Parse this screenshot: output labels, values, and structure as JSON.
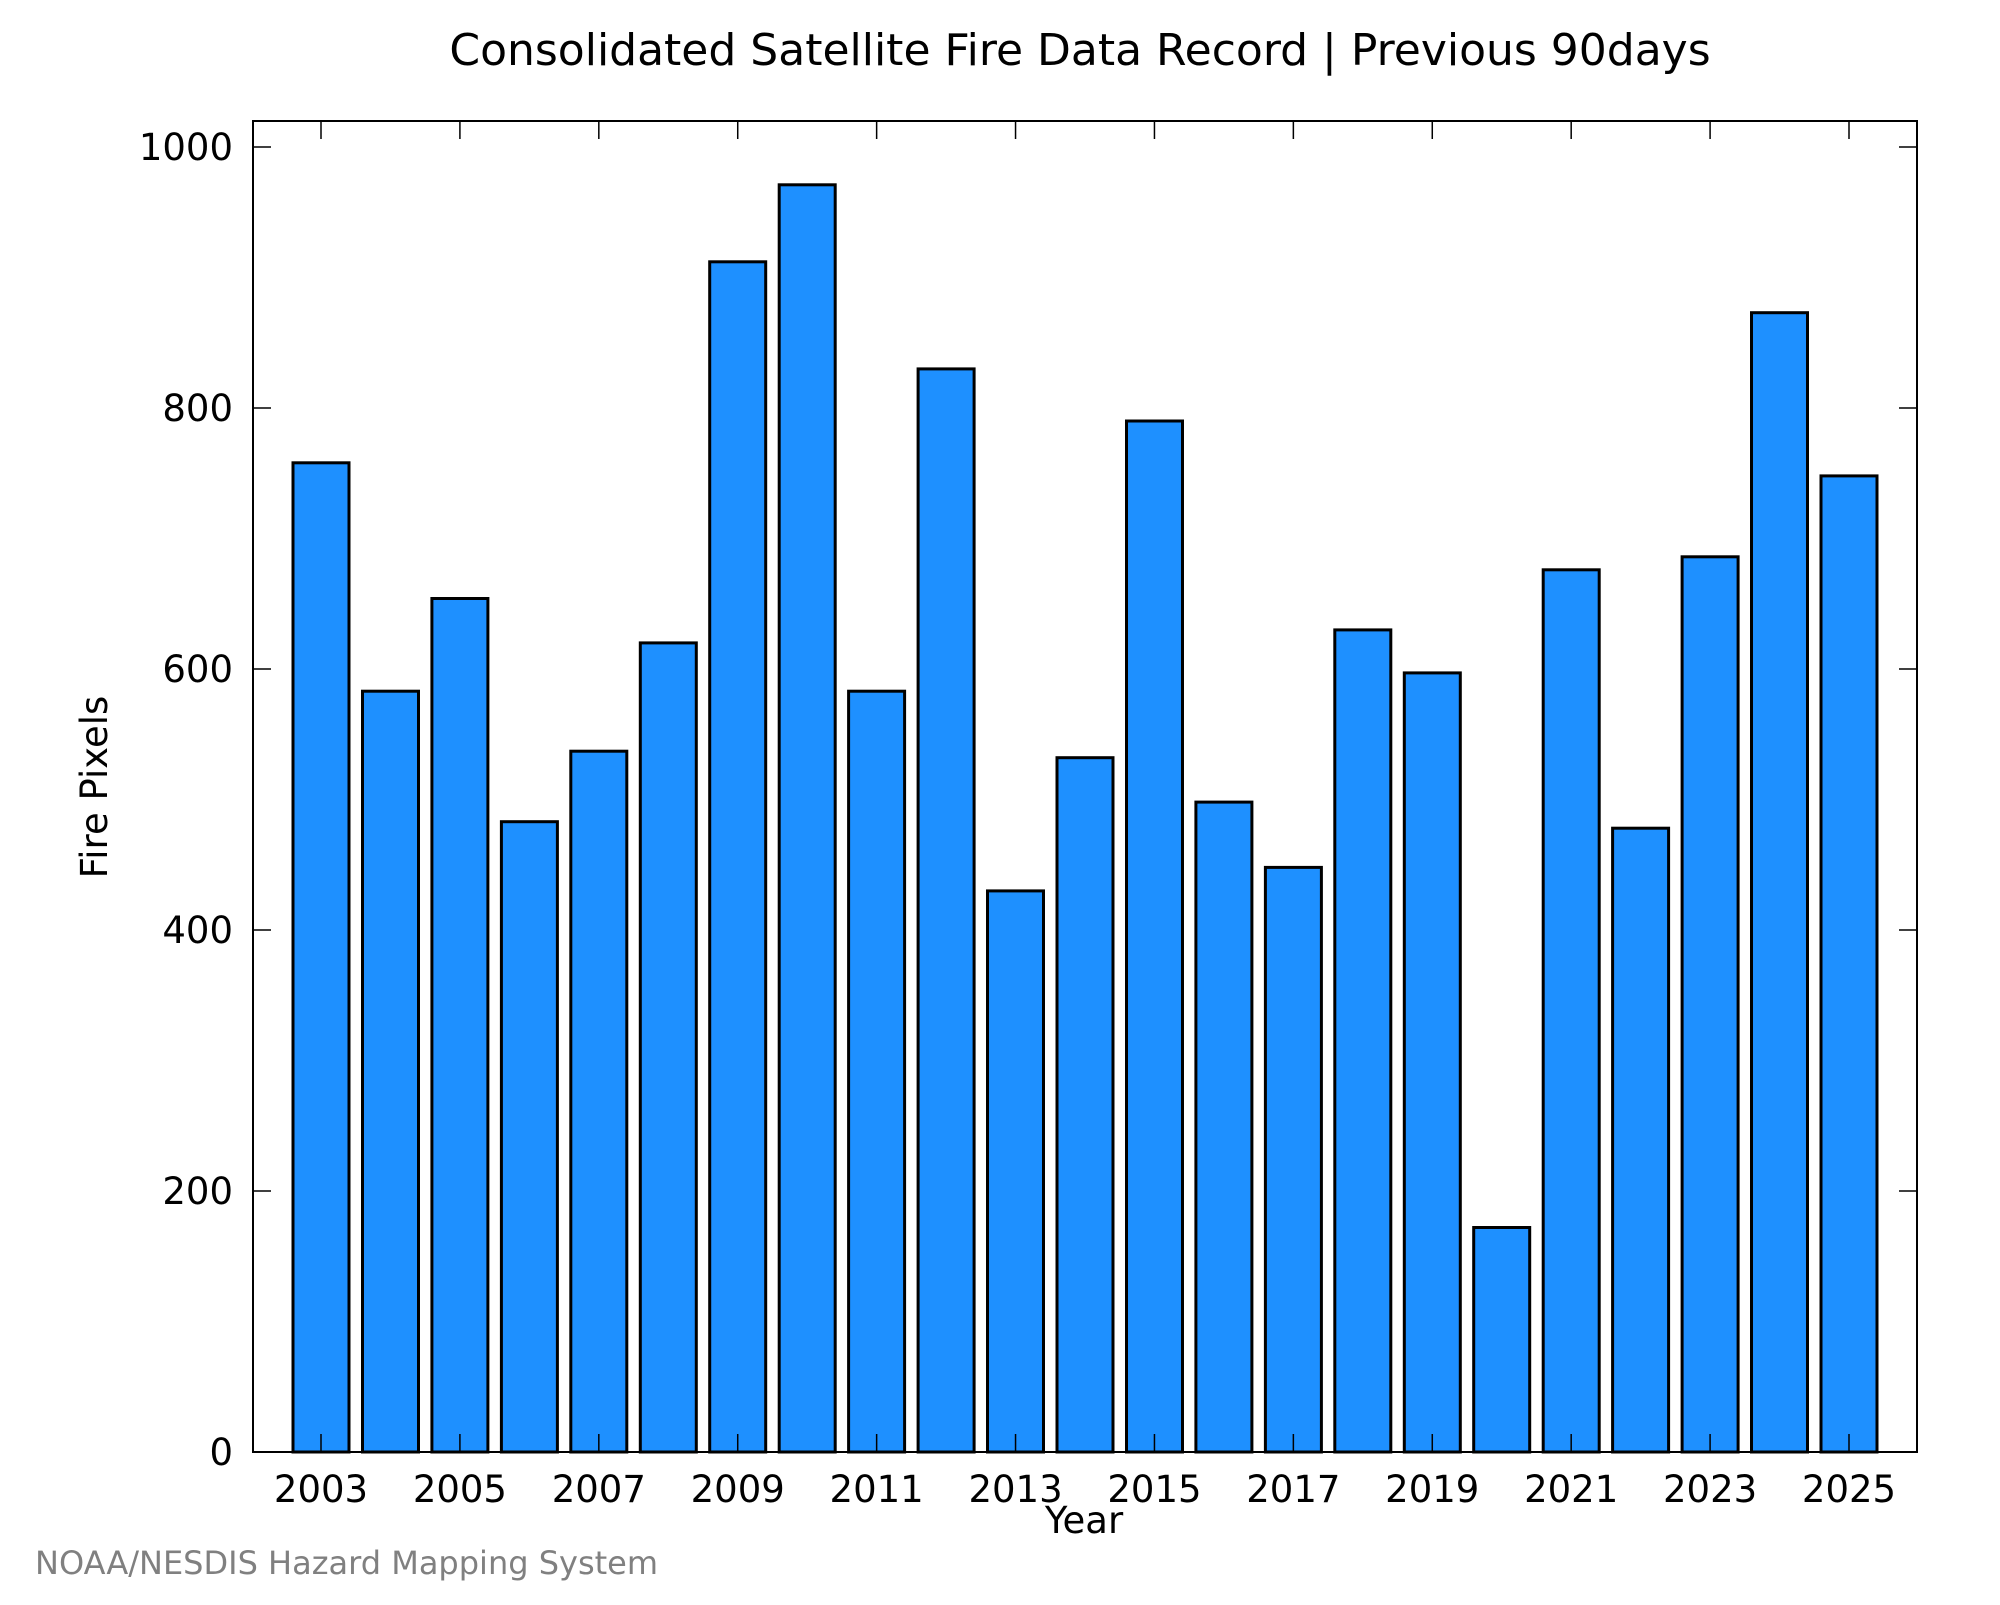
{
  "chart_data": {
    "type": "bar",
    "title": "Consolidated Satellite Fire Data Record | Previous 90days",
    "xlabel": "Year",
    "ylabel": "Fire Pixels",
    "credit": "NOAA/NESDIS Hazard Mapping System",
    "categories": [
      "2003",
      "2004",
      "2005",
      "2006",
      "2007",
      "2008",
      "2009",
      "2010",
      "2011",
      "2012",
      "2013",
      "2014",
      "2015",
      "2016",
      "2017",
      "2018",
      "2019",
      "2020",
      "2021",
      "2022",
      "2023",
      "2024",
      "2025"
    ],
    "values": [
      758,
      583,
      654,
      483,
      537,
      620,
      912,
      971,
      583,
      830,
      430,
      532,
      790,
      498,
      448,
      630,
      597,
      172,
      676,
      478,
      686,
      873,
      748
    ],
    "x_tick_labels": [
      "2003",
      "2005",
      "2007",
      "2009",
      "2011",
      "2013",
      "2015",
      "2017",
      "2019",
      "2021",
      "2023",
      "2025"
    ],
    "y_ticks": [
      0,
      200,
      400,
      600,
      800,
      1000
    ],
    "ylim": [
      0,
      1000
    ],
    "grid": false,
    "legend": "none",
    "colors": {
      "bar_fill": "#1e90ff",
      "bar_stroke": "#000000",
      "axis": "#000000",
      "credit_text": "#808080"
    }
  }
}
